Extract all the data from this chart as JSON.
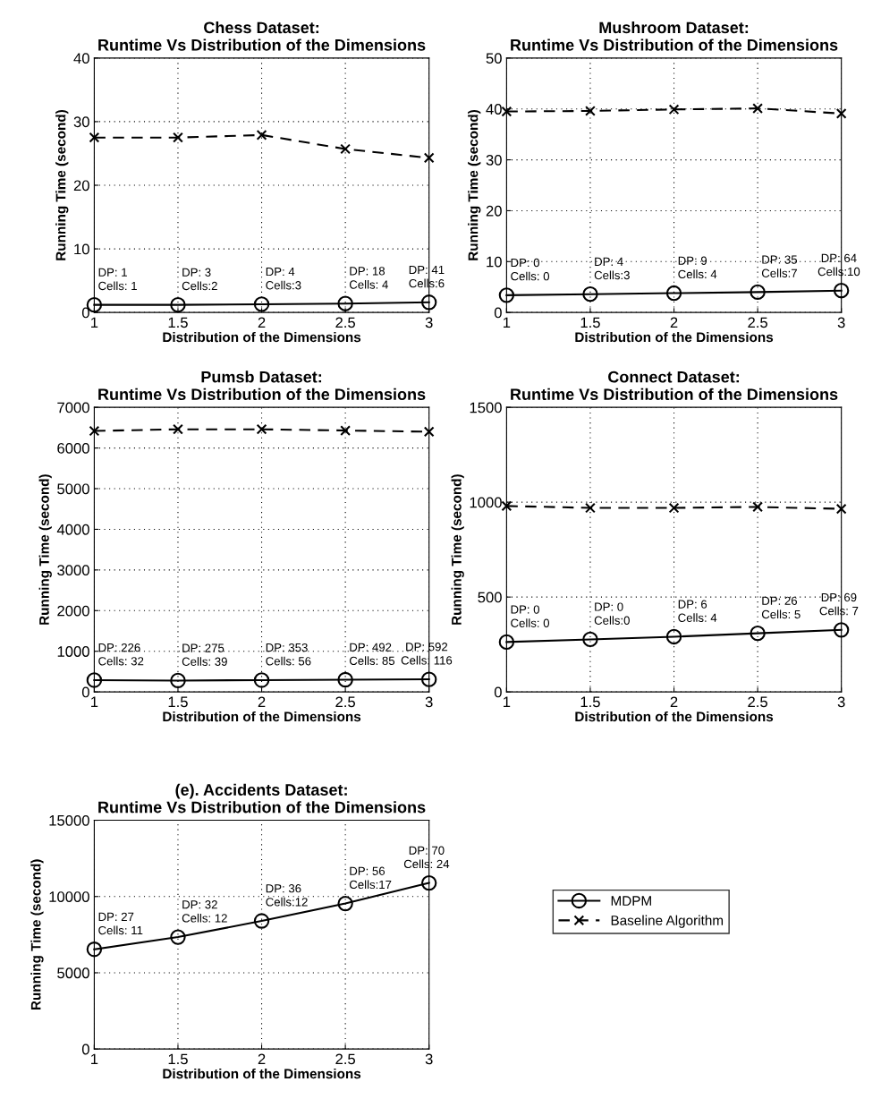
{
  "chart_data": [
    {
      "type": "line",
      "title": "Chess Dataset:\nRuntime Vs Distribution of the Dimensions",
      "xlabel": "Distribution of the Dimensions",
      "ylabel": "Running Time (second)",
      "x": [
        1,
        1.5,
        2,
        2.5,
        3
      ],
      "xlim": [
        1,
        3
      ],
      "xticks": [
        1,
        1.5,
        2,
        2.5,
        3
      ],
      "ylim": [
        0,
        40
      ],
      "yticks": [
        0,
        10,
        20,
        30,
        40
      ],
      "grid": true,
      "series": [
        {
          "color": "#000000",
          "marker": "circle",
          "line_style": "solid",
          "values": [
            1.2,
            1.2,
            1.3,
            1.4,
            1.6
          ]
        },
        {
          "color": "#000000",
          "marker": "cross",
          "line_style": "dashed",
          "values": [
            27.5,
            27.5,
            27.9,
            25.7,
            24.3
          ]
        }
      ],
      "annotations": [
        {
          "text": "DP: 1\nCells: 1",
          "x": 1,
          "y": 1.2
        },
        {
          "text": "DP: 3\nCells:2",
          "x": 1.5,
          "y": 1.2
        },
        {
          "text": "DP: 4\nCells:3",
          "x": 2,
          "y": 1.3
        },
        {
          "text": "DP: 18\nCells: 4",
          "x": 2.5,
          "y": 1.4
        },
        {
          "text": "DP: 41\nCells:6",
          "x": 3,
          "y": 1.6
        }
      ]
    },
    {
      "type": "line",
      "title": "Mushroom Dataset:\nRuntime Vs Distribution of the Dimensions",
      "xlabel": "Distribution of the Dimensions",
      "ylabel": "Running Time (second)",
      "x": [
        1,
        1.5,
        2,
        2.5,
        3
      ],
      "xlim": [
        1,
        3
      ],
      "xticks": [
        1,
        1.5,
        2,
        2.5,
        3
      ],
      "ylim": [
        0,
        50
      ],
      "yticks": [
        0,
        10,
        20,
        30,
        40,
        50
      ],
      "grid": true,
      "series": [
        {
          "color": "#000000",
          "marker": "circle",
          "line_style": "solid",
          "values": [
            3.4,
            3.6,
            3.8,
            4.0,
            4.3
          ]
        },
        {
          "color": "#000000",
          "marker": "cross",
          "line_style": "dashed",
          "values": [
            39.5,
            39.6,
            39.9,
            40.1,
            39.1
          ]
        }
      ],
      "annotations": [
        {
          "text": "DP: 0\nCells: 0",
          "x": 1,
          "y": 3.4
        },
        {
          "text": "DP: 4\nCells:3",
          "x": 1.5,
          "y": 3.6
        },
        {
          "text": "DP: 9\nCells: 4",
          "x": 2,
          "y": 3.8
        },
        {
          "text": "DP: 35\nCells:7",
          "x": 2.5,
          "y": 4.0
        },
        {
          "text": "DP: 64\nCells:10",
          "x": 3,
          "y": 4.3
        }
      ]
    },
    {
      "type": "line",
      "title": "Pumsb Dataset:\nRuntime Vs Distribution of the Dimensions",
      "xlabel": "Distribution of the Dimensions",
      "ylabel": "Running Time (second)",
      "x": [
        1,
        1.5,
        2,
        2.5,
        3
      ],
      "xlim": [
        1,
        3
      ],
      "xticks": [
        1,
        1.5,
        2,
        2.5,
        3
      ],
      "ylim": [
        0,
        7000
      ],
      "yticks": [
        0,
        1000,
        2000,
        3000,
        4000,
        5000,
        6000,
        7000
      ],
      "grid": true,
      "series": [
        {
          "color": "#000000",
          "marker": "circle",
          "line_style": "solid",
          "values": [
            290,
            280,
            290,
            300,
            310
          ]
        },
        {
          "color": "#000000",
          "marker": "cross",
          "line_style": "dashed",
          "values": [
            6420,
            6460,
            6460,
            6430,
            6400
          ]
        }
      ],
      "annotations": [
        {
          "text": "DP: 226\nCells: 32",
          "x": 1,
          "y": 290
        },
        {
          "text": "DP: 275\nCells: 39",
          "x": 1.5,
          "y": 280
        },
        {
          "text": "DP: 353\nCells: 56",
          "x": 2,
          "y": 290
        },
        {
          "text": "DP: 492\nCells: 85",
          "x": 2.5,
          "y": 300
        },
        {
          "text": "DP: 592\nCells: 116",
          "x": 3,
          "y": 310
        }
      ]
    },
    {
      "type": "line",
      "title": "Connect Dataset:\nRuntime Vs Distribution of the Dimensions",
      "xlabel": "Distribution of the Dimensions",
      "ylabel": "Running Time (second)",
      "x": [
        1,
        1.5,
        2,
        2.5,
        3
      ],
      "xlim": [
        1,
        3
      ],
      "xticks": [
        1,
        1.5,
        2,
        2.5,
        3
      ],
      "ylim": [
        0,
        1500
      ],
      "yticks": [
        0,
        500,
        1000,
        1500
      ],
      "grid": true,
      "series": [
        {
          "color": "#000000",
          "marker": "circle",
          "line_style": "solid",
          "values": [
            263,
            277,
            291,
            309,
            327
          ]
        },
        {
          "color": "#000000",
          "marker": "cross",
          "line_style": "dashed",
          "values": [
            980,
            970,
            970,
            975,
            965
          ]
        }
      ],
      "annotations": [
        {
          "text": "DP: 0\nCells: 0",
          "x": 1,
          "y": 263
        },
        {
          "text": "DP: 0\nCells:0",
          "x": 1.5,
          "y": 277
        },
        {
          "text": "DP: 6\nCells: 4",
          "x": 2,
          "y": 291
        },
        {
          "text": "DP: 26\nCells: 5",
          "x": 2.5,
          "y": 309
        },
        {
          "text": "DP: 69\nCells: 7",
          "x": 3,
          "y": 327
        }
      ]
    },
    {
      "type": "line",
      "title": "(e). Accidents Dataset:\nRuntime Vs Distribution of the Dimensions",
      "xlabel": "Distribution of the Dimensions",
      "ylabel": "Running Time (second)",
      "x": [
        1,
        1.5,
        2,
        2.5,
        3
      ],
      "xlim": [
        1,
        3
      ],
      "xticks": [
        1,
        1.5,
        2,
        2.5,
        3
      ],
      "ylim": [
        0,
        15000
      ],
      "yticks": [
        0,
        5000,
        10000,
        15000
      ],
      "grid": true,
      "legend": "right",
      "series": [
        {
          "name": "MDPM",
          "color": "#000000",
          "marker": "circle",
          "line_style": "solid",
          "values": [
            6540,
            7340,
            8400,
            9540,
            10890
          ]
        },
        {
          "name": "Baseline Algorithm",
          "color": "#000000",
          "marker": "cross",
          "line_style": "dashed",
          "values": [
            null,
            null,
            null,
            null,
            null
          ]
        }
      ],
      "annotations": [
        {
          "text": "DP: 27\nCells: 11",
          "x": 1,
          "y": 6540
        },
        {
          "text": "DP: 32\nCells: 12",
          "x": 1.5,
          "y": 7340
        },
        {
          "text": "DP: 36\nCells:12",
          "x": 2,
          "y": 8400
        },
        {
          "text": "DP: 56\nCells:17",
          "x": 2.5,
          "y": 9540
        },
        {
          "text": "DP: 70\nCells: 24",
          "x": 3,
          "y": 10890
        }
      ]
    }
  ]
}
